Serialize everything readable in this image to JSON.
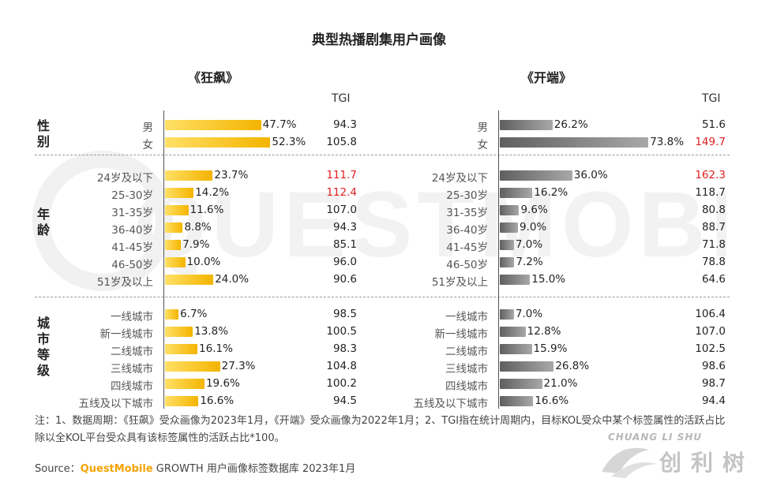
{
  "title": "典型热播剧集用户画像",
  "watermark": "QUESTMOBILE",
  "tgi_header": "TGI",
  "highlight_color": "#e02020",
  "sections": [
    {
      "label": "性别",
      "key": "gender"
    },
    {
      "label": "年龄",
      "key": "age"
    },
    {
      "label": "城市等级",
      "key": "city"
    }
  ],
  "chart_data": [
    {
      "type": "bar",
      "title": "《狂飙》",
      "color": "#f4b400",
      "categories": [
        "男",
        "女",
        "24岁及以下",
        "25-30岁",
        "31-35岁",
        "36-40岁",
        "41-45岁",
        "46-50岁",
        "51岁及以上",
        "一线城市",
        "新一线城市",
        "二线城市",
        "三线城市",
        "四线城市",
        "五线及以下城市"
      ],
      "values": [
        47.7,
        52.3,
        23.7,
        14.2,
        11.6,
        8.8,
        7.9,
        10.0,
        24.0,
        6.7,
        13.8,
        16.1,
        27.3,
        19.6,
        16.6
      ],
      "value_labels": [
        "47.7%",
        "52.3%",
        "23.7%",
        "14.2%",
        "11.6%",
        "8.8%",
        "7.9%",
        "10.0%",
        "24.0%",
        "6.7%",
        "13.8%",
        "16.1%",
        "27.3%",
        "19.6%",
        "16.6%"
      ],
      "tgi": [
        "94.3",
        "105.8",
        "111.7",
        "112.4",
        "107.0",
        "94.3",
        "85.1",
        "96.0",
        "90.6",
        "98.5",
        "100.5",
        "98.3",
        "104.8",
        "100.2",
        "94.5"
      ],
      "tgi_highlight": [
        false,
        false,
        true,
        true,
        false,
        false,
        false,
        false,
        false,
        false,
        false,
        false,
        false,
        false,
        false
      ]
    },
    {
      "type": "bar",
      "title": "《开端》",
      "color": "#808080",
      "categories": [
        "男",
        "女",
        "24岁及以下",
        "25-30岁",
        "31-35岁",
        "36-40岁",
        "41-45岁",
        "46-50岁",
        "51岁及以上",
        "一线城市",
        "新一线城市",
        "二线城市",
        "三线城市",
        "四线城市",
        "五线及以下城市"
      ],
      "values": [
        26.2,
        73.8,
        36.0,
        16.2,
        9.6,
        9.0,
        7.0,
        7.2,
        15.0,
        7.0,
        12.8,
        15.9,
        26.8,
        21.0,
        16.6
      ],
      "value_labels": [
        "26.2%",
        "73.8%",
        "36.0%",
        "16.2%",
        "9.6%",
        "9.0%",
        "7.0%",
        "7.2%",
        "15.0%",
        "7.0%",
        "12.8%",
        "15.9%",
        "26.8%",
        "21.0%",
        "16.6%"
      ],
      "tgi": [
        "51.6",
        "149.7",
        "162.3",
        "118.7",
        "80.8",
        "88.7",
        "71.8",
        "78.8",
        "64.6",
        "106.4",
        "107.0",
        "102.5",
        "98.6",
        "98.7",
        "94.4"
      ],
      "tgi_highlight": [
        false,
        true,
        true,
        false,
        false,
        false,
        false,
        false,
        false,
        false,
        false,
        false,
        false,
        false,
        false
      ]
    }
  ],
  "note": "注：1、数据周期：《狂飙》受众画像为2023年1月，《开端》受众画像为2022年1月；2、TGI指在统计周期内，目标KOL受众中某个标签属性的活跃占比除以全KOL平台受众具有该标签属性的活跃占比*100。",
  "source": {
    "prefix": "Source：",
    "brand": "QuestMobile",
    "suffix": " GROWTH 用户画像标签数据库 2023年1月"
  },
  "logo": {
    "en": "CHUANG LI SHU",
    "cn": "创利树"
  }
}
